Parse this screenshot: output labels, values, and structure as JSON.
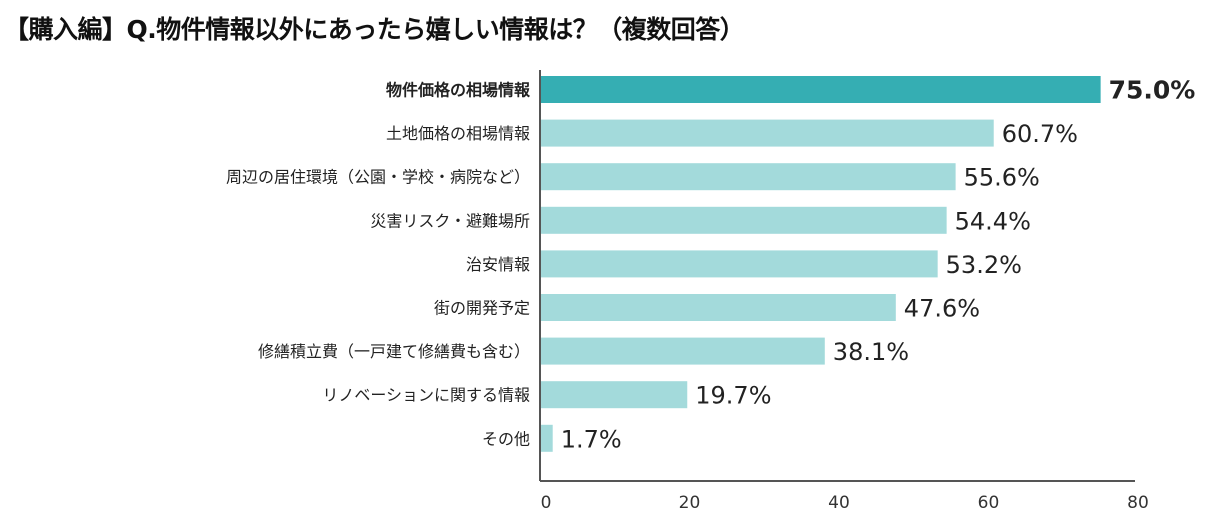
{
  "chart_data": {
    "type": "bar",
    "orientation": "horizontal",
    "title": "【購入編】Q.物件情報以外にあったら嬉しい情報は？（複数回答）",
    "categories": [
      "物件価格の相場情報",
      "土地価格の相場情報",
      "周辺の居住環境（公園・学校・病院など）",
      "災害リスク・避難場所",
      "治安情報",
      "街の開発予定",
      "修繕積立費（一戸建て修繕費も含む）",
      "リノベーションに関する情報",
      "その他"
    ],
    "values": [
      75.0,
      60.7,
      55.6,
      54.4,
      53.2,
      47.6,
      38.1,
      19.7,
      1.7
    ],
    "data_labels": [
      "75.0%",
      "60.7%",
      "55.6%",
      "54.4%",
      "53.2%",
      "47.6%",
      "38.1%",
      "19.7%",
      "1.7%"
    ],
    "xlim": [
      0,
      80
    ],
    "xticks": [
      "0",
      "20",
      "40",
      "60",
      "80"
    ],
    "grid": false,
    "colors": {
      "highlight": "#35aeb3",
      "bar": "#a3dadb",
      "axis": "#555555"
    }
  }
}
